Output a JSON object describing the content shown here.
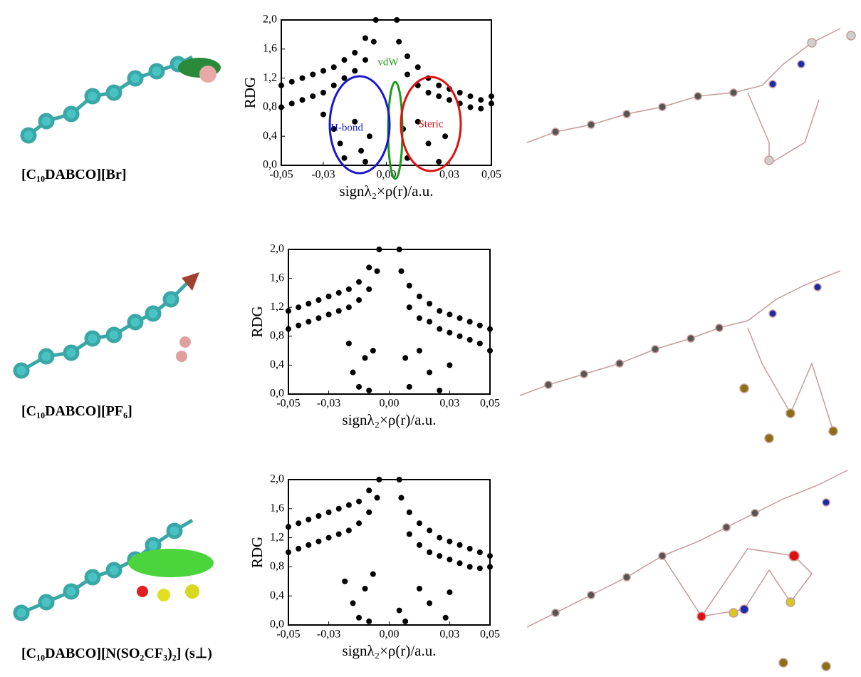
{
  "panels": [
    {
      "label": "[C₁₀DABCO][Br]"
    },
    {
      "label": "[C₁₀DABCO][PF₆]"
    },
    {
      "label": "[C₁₀DABCO][N(SO₂CF₃)₂] (s⊥)"
    }
  ],
  "chart_data": [
    {
      "type": "scatter",
      "color": "#000000",
      "x_label": "signλ₂×ρ(r)/a.u.",
      "y_label": "RDG",
      "xlim": [
        -0.05,
        0.05
      ],
      "ylim": [
        0,
        2
      ],
      "xticks": [
        {
          "value": -0.05,
          "label": "-0,05"
        },
        {
          "value": -0.03,
          "label": "-0,03"
        },
        {
          "value": 0,
          "label": "0,00"
        },
        {
          "value": 0.03,
          "label": "0,03"
        },
        {
          "value": 0.05,
          "label": "0,05"
        }
      ],
      "yticks": [
        {
          "value": 0,
          "label": "0,0"
        },
        {
          "value": 0.4,
          "label": "0,4"
        },
        {
          "value": 0.8,
          "label": "0,8"
        },
        {
          "value": 1.2,
          "label": "1,2"
        },
        {
          "value": 1.6,
          "label": "1,6"
        },
        {
          "value": 2,
          "label": "2,0"
        }
      ],
      "annotations": [
        {
          "text": "vdW",
          "color": "#1a9a1a"
        },
        {
          "text": "H-bond",
          "color": "#1a1acc"
        },
        {
          "text": "Steric",
          "color": "#dd1111"
        }
      ],
      "x": [
        -0.05,
        -0.05,
        -0.045,
        -0.045,
        -0.04,
        -0.04,
        -0.035,
        -0.035,
        -0.03,
        -0.03,
        -0.025,
        -0.025,
        -0.02,
        -0.02,
        -0.015,
        -0.015,
        -0.01,
        -0.01,
        -0.006,
        -0.005,
        -0.03,
        -0.025,
        -0.022,
        -0.02,
        -0.015,
        -0.012,
        -0.01,
        -0.008,
        0.005,
        0.006,
        0.01,
        0.01,
        0.015,
        0.015,
        0.02,
        0.02,
        0.025,
        0.025,
        0.03,
        0.03,
        0.035,
        0.035,
        0.04,
        0.04,
        0.045,
        0.045,
        0.05,
        0.05,
        0.008,
        0.01,
        0.015,
        0.02,
        0.025,
        0.028
      ],
      "y": [
        0.8,
        1.1,
        0.85,
        1.15,
        0.9,
        1.2,
        0.95,
        1.25,
        1.0,
        1.3,
        1.1,
        1.35,
        1.2,
        1.45,
        1.3,
        1.55,
        1.45,
        1.75,
        1.7,
        2.0,
        0.7,
        0.5,
        0.3,
        0.1,
        0.6,
        0.2,
        0.05,
        0.4,
        2.0,
        1.7,
        1.5,
        1.25,
        1.35,
        1.1,
        1.2,
        1.0,
        1.1,
        0.95,
        1.05,
        0.9,
        1.0,
        0.85,
        0.95,
        0.8,
        0.9,
        0.78,
        0.85,
        0.95,
        0.5,
        0.1,
        0.6,
        0.3,
        0.05,
        0.4
      ]
    },
    {
      "type": "scatter",
      "color": "#000000",
      "x_label": "signλ₂×ρ(r)/a.u.",
      "y_label": "RDG",
      "xlim": [
        -0.05,
        0.05
      ],
      "ylim": [
        0,
        2
      ],
      "xticks": [
        {
          "value": -0.05,
          "label": "-0,05"
        },
        {
          "value": -0.03,
          "label": "-0,03"
        },
        {
          "value": 0,
          "label": "0,00"
        },
        {
          "value": 0.03,
          "label": "0,03"
        },
        {
          "value": 0.05,
          "label": "0,05"
        }
      ],
      "yticks": [
        {
          "value": 0,
          "label": "0,0"
        },
        {
          "value": 0.4,
          "label": "0,4"
        },
        {
          "value": 0.8,
          "label": "0,8"
        },
        {
          "value": 1.2,
          "label": "1,2"
        },
        {
          "value": 1.6,
          "label": "1,6"
        },
        {
          "value": 2,
          "label": "2,0"
        }
      ],
      "x": [
        -0.05,
        -0.05,
        -0.045,
        -0.045,
        -0.04,
        -0.04,
        -0.035,
        -0.035,
        -0.03,
        -0.03,
        -0.025,
        -0.025,
        -0.02,
        -0.02,
        -0.015,
        -0.015,
        -0.01,
        -0.01,
        -0.006,
        -0.005,
        -0.02,
        -0.018,
        -0.015,
        -0.012,
        -0.01,
        -0.008,
        0.005,
        0.006,
        0.01,
        0.01,
        0.015,
        0.015,
        0.02,
        0.02,
        0.025,
        0.025,
        0.03,
        0.03,
        0.035,
        0.035,
        0.04,
        0.04,
        0.045,
        0.045,
        0.05,
        0.05,
        0.008,
        0.01,
        0.015,
        0.02,
        0.025,
        0.03
      ],
      "y": [
        0.9,
        1.15,
        0.95,
        1.2,
        1.0,
        1.25,
        1.05,
        1.3,
        1.1,
        1.35,
        1.15,
        1.4,
        1.2,
        1.45,
        1.3,
        1.55,
        1.45,
        1.75,
        1.7,
        2.0,
        0.7,
        0.3,
        0.1,
        0.5,
        0.05,
        0.6,
        2.0,
        1.7,
        1.5,
        1.2,
        1.35,
        1.05,
        1.25,
        1.0,
        1.15,
        0.9,
        1.1,
        0.85,
        1.05,
        0.8,
        1.0,
        0.75,
        0.95,
        0.7,
        0.9,
        0.6,
        0.5,
        0.1,
        0.6,
        0.3,
        0.05,
        0.4
      ]
    },
    {
      "type": "scatter",
      "color": "#000000",
      "x_label": "signλ₂×ρ(r)/a.u.",
      "y_label": "RDG",
      "xlim": [
        -0.05,
        0.05
      ],
      "ylim": [
        0,
        2
      ],
      "xticks": [
        {
          "value": -0.05,
          "label": "-0,05"
        },
        {
          "value": -0.03,
          "label": "-0,03"
        },
        {
          "value": 0,
          "label": "0,00"
        },
        {
          "value": 0.03,
          "label": "0,03"
        },
        {
          "value": 0.05,
          "label": "0,05"
        }
      ],
      "yticks": [
        {
          "value": 0,
          "label": "0,0"
        },
        {
          "value": 0.4,
          "label": "0,4"
        },
        {
          "value": 0.8,
          "label": "0,8"
        },
        {
          "value": 1.2,
          "label": "1,2"
        },
        {
          "value": 1.6,
          "label": "1,6"
        },
        {
          "value": 2,
          "label": "2,0"
        }
      ],
      "x": [
        -0.05,
        -0.05,
        -0.045,
        -0.045,
        -0.04,
        -0.04,
        -0.035,
        -0.035,
        -0.03,
        -0.03,
        -0.025,
        -0.025,
        -0.02,
        -0.02,
        -0.015,
        -0.015,
        -0.01,
        -0.01,
        -0.006,
        -0.005,
        -0.022,
        -0.018,
        -0.015,
        -0.012,
        -0.01,
        -0.008,
        0.005,
        0.006,
        0.01,
        0.01,
        0.015,
        0.015,
        0.02,
        0.02,
        0.025,
        0.025,
        0.03,
        0.03,
        0.035,
        0.035,
        0.04,
        0.04,
        0.045,
        0.045,
        0.05,
        0.05,
        0.005,
        0.008,
        0.015,
        0.02,
        0.028,
        0.03
      ],
      "y": [
        1.0,
        1.35,
        1.05,
        1.4,
        1.1,
        1.45,
        1.15,
        1.5,
        1.2,
        1.55,
        1.25,
        1.6,
        1.3,
        1.65,
        1.4,
        1.7,
        1.55,
        1.85,
        1.75,
        2.0,
        0.6,
        0.3,
        0.1,
        0.5,
        0.05,
        0.7,
        2.0,
        1.75,
        1.55,
        1.25,
        1.4,
        1.1,
        1.3,
        1.0,
        1.2,
        0.95,
        1.15,
        0.9,
        1.1,
        0.85,
        1.05,
        0.8,
        1.0,
        0.78,
        0.95,
        0.8,
        0.2,
        0.05,
        0.5,
        0.3,
        0.1,
        0.45
      ]
    }
  ]
}
